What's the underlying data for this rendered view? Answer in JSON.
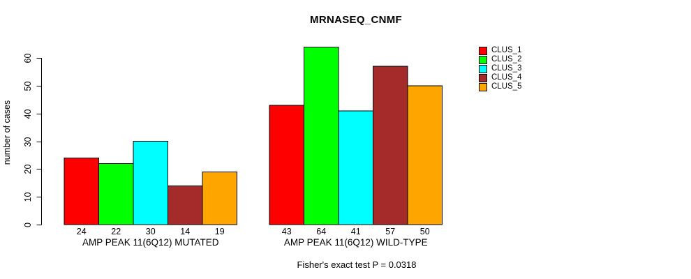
{
  "chart_data": {
    "type": "bar",
    "title": "MRNASEQ_CNMF",
    "ylabel": "number of cases",
    "xlabel": "",
    "footer": "Fisher's exact test P = 0.0318",
    "categories": [
      "AMP PEAK 11(6Q12) MUTATED",
      "AMP PEAK 11(6Q12) WILD-TYPE"
    ],
    "series": [
      {
        "name": "CLUS_1",
        "color": "#FF0000",
        "values": [
          24,
          43
        ]
      },
      {
        "name": "CLUS_2",
        "color": "#00FF00",
        "values": [
          22,
          64
        ]
      },
      {
        "name": "CLUS_3",
        "color": "#00FFFF",
        "values": [
          30,
          41
        ]
      },
      {
        "name": "CLUS_4",
        "color": "#A52A2A",
        "values": [
          14,
          57
        ]
      },
      {
        "name": "CLUS_5",
        "color": "#FFA500",
        "values": [
          19,
          50
        ]
      }
    ],
    "bar_value_labels": [
      [
        24,
        22,
        30,
        14,
        19
      ],
      [
        43,
        64,
        41,
        57,
        50
      ]
    ],
    "y_ticks": [
      0,
      10,
      20,
      30,
      40,
      50,
      60
    ],
    "ylim": [
      0,
      64
    ],
    "grid": false,
    "legend_position": "right",
    "axis_color": "#000000",
    "background_color": "#FFFFFF"
  }
}
